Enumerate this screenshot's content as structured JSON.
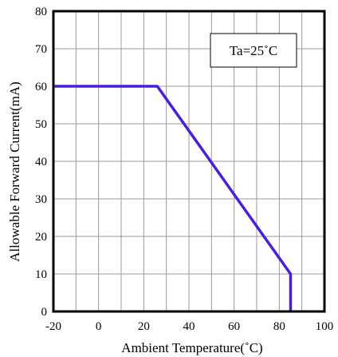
{
  "chart_data": {
    "type": "line",
    "xlabel": "Ambient Temperature(˚C)",
    "ylabel": "Allowable Forward Current(mA)",
    "xlim": [
      -20,
      100
    ],
    "ylim": [
      0,
      80
    ],
    "xticks": [
      -20,
      0,
      20,
      40,
      60,
      80,
      100
    ],
    "yticks": [
      0,
      10,
      20,
      30,
      40,
      50,
      60,
      70,
      80
    ],
    "x_minor_grid": [
      -10,
      10,
      30,
      50,
      70,
      90
    ],
    "grid": true,
    "annotation": "Ta=25˚C",
    "series": [
      {
        "color": "#4b1fd6",
        "x": [
          -20,
          26,
          85,
          85
        ],
        "y": [
          60,
          60,
          10,
          0
        ]
      }
    ]
  }
}
